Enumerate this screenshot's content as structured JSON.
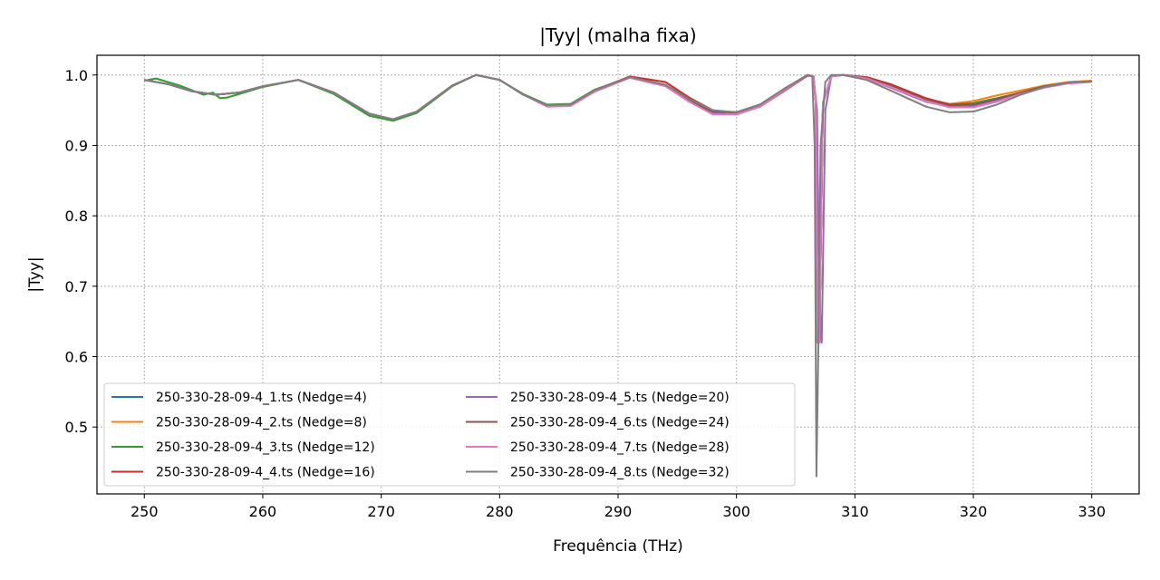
{
  "chart_data": {
    "type": "line",
    "title": "|Tyy| (malha fixa)",
    "xlabel": "Frequência (THz)",
    "ylabel": "|Tyy|",
    "xlim": [
      246,
      334
    ],
    "ylim": [
      0.405,
      1.028
    ],
    "xticks": [
      250,
      260,
      270,
      280,
      290,
      300,
      310,
      320,
      330
    ],
    "yticks": [
      0.5,
      0.6,
      0.7,
      0.8,
      0.9,
      1.0
    ],
    "grid": true,
    "legend_position": "lower-left",
    "legend_columns": 2,
    "series": [
      {
        "name": "250-330-28-09-4_1.ts (Nedge=4)",
        "color": "#1f77b4",
        "x": [
          250,
          252,
          254,
          256,
          258,
          260,
          263,
          266,
          269,
          271,
          273,
          276,
          278,
          280,
          282,
          284,
          286,
          288,
          291,
          294,
          296,
          298,
          300,
          302,
          304,
          306,
          306.5,
          306.7,
          306.85,
          307,
          307.3,
          308,
          309,
          311,
          313,
          316,
          318,
          320,
          322,
          324,
          326,
          328,
          330
        ],
        "y": [
          0.993,
          0.987,
          0.977,
          0.972,
          0.975,
          0.984,
          0.993,
          0.975,
          0.945,
          0.937,
          0.948,
          0.985,
          1.0,
          0.993,
          0.972,
          0.957,
          0.958,
          0.978,
          0.997,
          0.985,
          0.963,
          0.948,
          0.947,
          0.958,
          0.98,
          1.0,
          0.998,
          0.96,
          0.62,
          0.62,
          0.96,
          0.998,
          1.0,
          0.996,
          0.985,
          0.965,
          0.958,
          0.96,
          0.967,
          0.975,
          0.984,
          0.989,
          0.991
        ]
      },
      {
        "name": "250-330-28-09-4_2.ts (Nedge=8)",
        "color": "#ff7f0e",
        "x": [
          250,
          252,
          254,
          256,
          258,
          260,
          263,
          266,
          269,
          271,
          273,
          276,
          278,
          280,
          282,
          284,
          286,
          288,
          291,
          294,
          296,
          298,
          300,
          302,
          304,
          306,
          306.5,
          306.7,
          306.85,
          307,
          307.3,
          308,
          309,
          311,
          313,
          316,
          318,
          320,
          322,
          324,
          326,
          328,
          330
        ],
        "y": [
          0.993,
          0.987,
          0.977,
          0.972,
          0.975,
          0.984,
          0.993,
          0.975,
          0.945,
          0.937,
          0.948,
          0.985,
          1.0,
          0.993,
          0.972,
          0.957,
          0.958,
          0.978,
          0.997,
          0.985,
          0.963,
          0.948,
          0.947,
          0.958,
          0.98,
          1.0,
          0.998,
          0.96,
          0.62,
          0.62,
          0.96,
          0.998,
          1.0,
          0.996,
          0.985,
          0.966,
          0.959,
          0.963,
          0.971,
          0.978,
          0.985,
          0.99,
          0.992
        ]
      },
      {
        "name": "250-330-28-09-4_3.ts (Nedge=12)",
        "color": "#2ca02c",
        "x": [
          250,
          251,
          253,
          255,
          255.8,
          256,
          256.4,
          257,
          258,
          260,
          263,
          266,
          269,
          271,
          273,
          276,
          278,
          280,
          282,
          284,
          286,
          288,
          291,
          294,
          296,
          298,
          300,
          302,
          304,
          306,
          306.5,
          306.7,
          306.85,
          307,
          307.3,
          308,
          309,
          311,
          313,
          316,
          318,
          320,
          322,
          324,
          326,
          328,
          330
        ],
        "y": [
          0.992,
          0.995,
          0.985,
          0.972,
          0.975,
          0.972,
          0.967,
          0.968,
          0.973,
          0.983,
          0.993,
          0.973,
          0.942,
          0.935,
          0.946,
          0.984,
          1.0,
          0.993,
          0.973,
          0.958,
          0.959,
          0.979,
          0.997,
          0.986,
          0.964,
          0.948,
          0.947,
          0.958,
          0.98,
          1.0,
          0.998,
          0.96,
          0.62,
          0.62,
          0.96,
          0.998,
          1.0,
          0.996,
          0.985,
          0.965,
          0.958,
          0.96,
          0.967,
          0.975,
          0.984,
          0.989,
          0.991
        ]
      },
      {
        "name": "250-330-28-09-4_4.ts (Nedge=16)",
        "color": "#d62728",
        "x": [
          250,
          252,
          254,
          256,
          258,
          260,
          263,
          266,
          269,
          271,
          273,
          276,
          278,
          280,
          282,
          284,
          286,
          288,
          291,
          294,
          296,
          298,
          300,
          302,
          304,
          306,
          306.5,
          306.7,
          306.85,
          307,
          307.3,
          308,
          309,
          311,
          313,
          316,
          318,
          320,
          322,
          324,
          326,
          328,
          330
        ],
        "y": [
          0.993,
          0.987,
          0.977,
          0.972,
          0.975,
          0.984,
          0.993,
          0.975,
          0.945,
          0.937,
          0.948,
          0.985,
          1.0,
          0.993,
          0.972,
          0.957,
          0.958,
          0.978,
          0.998,
          0.99,
          0.968,
          0.95,
          0.946,
          0.955,
          0.977,
          0.999,
          0.998,
          0.96,
          0.62,
          0.62,
          0.96,
          0.998,
          1.0,
          0.997,
          0.987,
          0.967,
          0.958,
          0.958,
          0.965,
          0.974,
          0.983,
          0.989,
          0.991
        ]
      },
      {
        "name": "250-330-28-09-4_5.ts (Nedge=20)",
        "color": "#9467bd",
        "x": [
          250,
          252,
          254,
          256,
          258,
          260,
          263,
          266,
          269,
          271,
          273,
          276,
          278,
          280,
          282,
          284,
          286,
          288,
          291,
          294,
          296,
          298,
          300,
          302,
          304,
          306,
          306.5,
          306.8,
          307.0,
          307.2,
          307.5,
          308,
          309,
          311,
          313,
          316,
          318,
          320,
          322,
          324,
          326,
          328,
          330
        ],
        "y": [
          0.993,
          0.987,
          0.977,
          0.972,
          0.975,
          0.984,
          0.993,
          0.975,
          0.945,
          0.937,
          0.948,
          0.985,
          1.0,
          0.993,
          0.972,
          0.957,
          0.958,
          0.978,
          0.997,
          0.985,
          0.963,
          0.946,
          0.944,
          0.955,
          0.978,
          1.0,
          0.998,
          0.95,
          0.68,
          0.62,
          0.95,
          0.998,
          1.0,
          0.995,
          0.982,
          0.962,
          0.955,
          0.956,
          0.964,
          0.974,
          0.983,
          0.989,
          0.991
        ]
      },
      {
        "name": "250-330-28-09-4_6.ts (Nedge=24)",
        "color": "#8c564b",
        "x": [
          250,
          252,
          254,
          256,
          258,
          260,
          263,
          266,
          269,
          271,
          273,
          276,
          278,
          280,
          282,
          284,
          286,
          288,
          291,
          294,
          296,
          298,
          300,
          302,
          304,
          306,
          306.5,
          306.7,
          306.85,
          307,
          307.3,
          308,
          309,
          311,
          313,
          316,
          318,
          320,
          322,
          324,
          326,
          328,
          330
        ],
        "y": [
          0.993,
          0.987,
          0.977,
          0.972,
          0.975,
          0.984,
          0.993,
          0.975,
          0.945,
          0.937,
          0.948,
          0.985,
          1.0,
          0.993,
          0.972,
          0.957,
          0.958,
          0.978,
          0.997,
          0.985,
          0.963,
          0.948,
          0.947,
          0.958,
          0.98,
          1.0,
          0.998,
          0.96,
          0.62,
          0.62,
          0.96,
          0.998,
          1.0,
          0.996,
          0.985,
          0.965,
          0.957,
          0.958,
          0.966,
          0.975,
          0.984,
          0.989,
          0.991
        ]
      },
      {
        "name": "250-330-28-09-4_7.ts (Nedge=28)",
        "color": "#e377c2",
        "x": [
          250,
          252,
          254,
          256,
          258,
          260,
          263,
          266,
          269,
          271,
          273,
          276,
          278,
          280,
          282,
          284,
          286,
          288,
          291,
          294,
          296,
          298,
          300,
          302,
          304,
          306,
          306.5,
          306.7,
          306.85,
          307,
          307.3,
          308,
          309,
          311,
          313,
          316,
          318,
          320,
          322,
          324,
          326,
          328,
          330
        ],
        "y": [
          0.993,
          0.987,
          0.977,
          0.972,
          0.975,
          0.984,
          0.993,
          0.975,
          0.945,
          0.937,
          0.948,
          0.985,
          1.0,
          0.993,
          0.972,
          0.955,
          0.956,
          0.976,
          0.996,
          0.984,
          0.962,
          0.944,
          0.944,
          0.955,
          0.978,
          1.0,
          0.998,
          0.96,
          0.62,
          0.62,
          0.96,
          0.998,
          1.0,
          0.995,
          0.983,
          0.963,
          0.954,
          0.954,
          0.962,
          0.973,
          0.982,
          0.988,
          0.99
        ]
      },
      {
        "name": "250-330-28-09-4_8.ts (Nedge=32)",
        "color": "#7f7f7f",
        "x": [
          250,
          252,
          254,
          256,
          258,
          260,
          263,
          266,
          269,
          271,
          273,
          276,
          278,
          280,
          282,
          284,
          286,
          288,
          291,
          294,
          296,
          298,
          300,
          302,
          304,
          306,
          306.4,
          306.6,
          306.75,
          306.9,
          307.1,
          307.5,
          308,
          309,
          311,
          313,
          316,
          318,
          320,
          322,
          324,
          326,
          328,
          330
        ],
        "y": [
          0.993,
          0.987,
          0.977,
          0.972,
          0.975,
          0.984,
          0.993,
          0.975,
          0.945,
          0.937,
          0.948,
          0.985,
          1.0,
          0.993,
          0.972,
          0.957,
          0.958,
          0.978,
          0.997,
          0.986,
          0.966,
          0.95,
          0.947,
          0.958,
          0.98,
          1.0,
          0.998,
          0.9,
          0.43,
          0.6,
          0.9,
          0.99,
          1.0,
          1.0,
          0.993,
          0.978,
          0.955,
          0.947,
          0.948,
          0.958,
          0.972,
          0.983,
          0.989,
          0.991
        ]
      }
    ]
  }
}
